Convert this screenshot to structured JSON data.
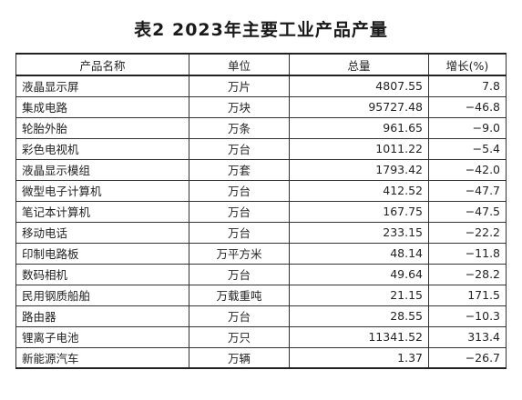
{
  "title": "表2  2023年主要工业产品产量",
  "columns": {
    "name": "产品名称",
    "unit": "单位",
    "total": "总量",
    "growth": "增长(%)"
  },
  "rows": [
    {
      "name": "液晶显示屏",
      "unit": "万片",
      "total": "4807.55",
      "growth": "7.8"
    },
    {
      "name": "集成电路",
      "unit": "万块",
      "total": "95727.48",
      "growth": "−46.8"
    },
    {
      "name": "轮胎外胎",
      "unit": "万条",
      "total": "961.65",
      "growth": "−9.0"
    },
    {
      "name": "彩色电视机",
      "unit": "万台",
      "total": "1011.22",
      "growth": "−5.4"
    },
    {
      "name": "液晶显示模组",
      "unit": "万套",
      "total": "1793.42",
      "growth": "−42.0"
    },
    {
      "name": "微型电子计算机",
      "unit": "万台",
      "total": "412.52",
      "growth": "−47.7"
    },
    {
      "name": "笔记本计算机",
      "unit": "万台",
      "total": "167.75",
      "growth": "−47.5"
    },
    {
      "name": "移动电话",
      "unit": "万台",
      "total": "233.15",
      "growth": "−22.2"
    },
    {
      "name": "印制电路板",
      "unit": "万平方米",
      "total": "48.14",
      "growth": "−11.8"
    },
    {
      "name": "数码相机",
      "unit": "万台",
      "total": "49.64",
      "growth": "−28.2"
    },
    {
      "name": "民用钢质船舶",
      "unit": "万载重吨",
      "total": "21.15",
      "growth": "171.5"
    },
    {
      "name": "路由器",
      "unit": "万台",
      "total": "28.55",
      "growth": "−10.3"
    },
    {
      "name": "锂离子电池",
      "unit": "万只",
      "total": "11341.52",
      "growth": "313.4"
    },
    {
      "name": "新能源汽车",
      "unit": "万辆",
      "total": "1.37",
      "growth": "−26.7"
    }
  ]
}
